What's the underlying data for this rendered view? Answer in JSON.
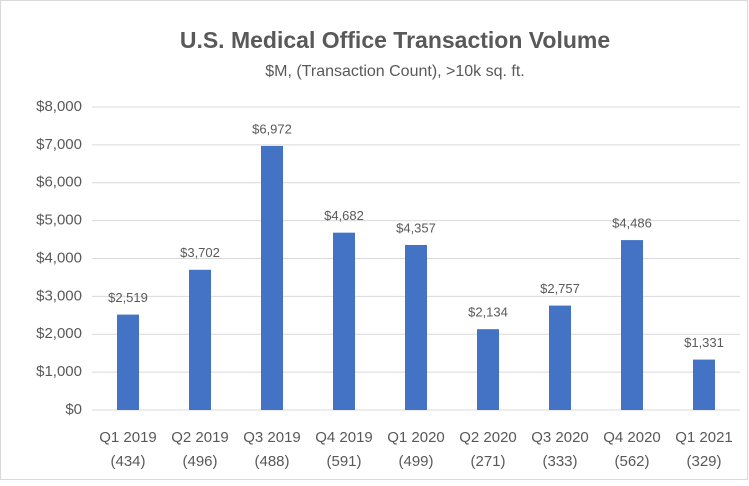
{
  "chart_data": {
    "type": "bar",
    "title": "U.S. Medical Office Transaction Volume",
    "subtitle": "$M, (Transaction Count), >10k sq. ft.",
    "categories": [
      [
        "Q1 2019",
        "(434)"
      ],
      [
        "Q2 2019",
        "(496)"
      ],
      [
        "Q3 2019",
        "(488)"
      ],
      [
        "Q4 2019",
        "(591)"
      ],
      [
        "Q1 2020",
        "(499)"
      ],
      [
        "Q2 2020",
        "(271)"
      ],
      [
        "Q3 2020",
        "(333)"
      ],
      [
        "Q4 2020",
        "(562)"
      ],
      [
        "Q1 2021",
        "(329)"
      ]
    ],
    "values": [
      2519,
      3702,
      6972,
      4682,
      4357,
      2134,
      2757,
      4486,
      1331
    ],
    "value_labels": [
      "$2,519",
      "$3,702",
      "$6,972",
      "$4,682",
      "$4,357",
      "$2,134",
      "$2,757",
      "$4,486",
      "$1,331"
    ],
    "color": "#4472c4",
    "ylim": [
      0,
      8000
    ],
    "yticks": [
      {
        "value": 0,
        "label": "$0"
      },
      {
        "value": 1000,
        "label": "$1,000"
      },
      {
        "value": 2000,
        "label": "$2,000"
      },
      {
        "value": 3000,
        "label": "$3,000"
      },
      {
        "value": 4000,
        "label": "$4,000"
      },
      {
        "value": 5000,
        "label": "$5,000"
      },
      {
        "value": 6000,
        "label": "$6,000"
      },
      {
        "value": 7000,
        "label": "$7,000"
      },
      {
        "value": 8000,
        "label": "$8,000"
      }
    ],
    "grid": true
  }
}
